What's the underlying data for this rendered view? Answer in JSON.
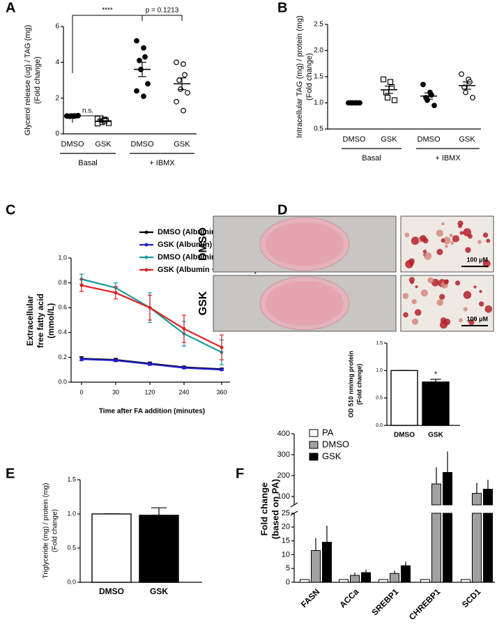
{
  "chart_data": [
    {
      "type": "dot",
      "panel": "A",
      "ylabel": [
        "Glycerol release (ug) / TAG (mg)",
        "(Fold change)"
      ],
      "categories": [
        "DMSO",
        "GSK",
        "DMSO",
        "GSK"
      ],
      "group_labels": [
        "Basal",
        "+ IBMX"
      ],
      "markers": [
        "filled-circle",
        "open-square",
        "filled-circle",
        "open-circle"
      ],
      "points": [
        [
          1.0,
          1.0,
          1.0,
          0.98,
          1.0,
          1.02,
          1.0,
          0.99
        ],
        [
          0.85,
          0.8,
          0.75,
          0.7,
          0.65,
          0.6,
          0.58,
          0.72
        ],
        [
          5.2,
          4.8,
          4.3,
          4.1,
          3.6,
          2.8,
          2.4,
          2.1
        ],
        [
          4.0,
          3.9,
          3.3,
          3.0,
          2.5,
          2.3,
          1.8,
          1.3
        ]
      ],
      "means": [
        1.0,
        0.7,
        3.6,
        2.8
      ],
      "errors": [
        0.01,
        0.04,
        0.4,
        0.33
      ],
      "annotations": [
        "****",
        "p = 0.1213",
        "n.s."
      ],
      "ylim": [
        0,
        6
      ],
      "yticks": [
        0,
        2,
        4,
        6
      ]
    },
    {
      "type": "dot",
      "panel": "B",
      "ylabel": [
        "Intracellular TAG (mg) / protein (mg)",
        "(Fold change)"
      ],
      "categories": [
        "DMSO",
        "GSK",
        "DMSO",
        "GSK"
      ],
      "group_labels": [
        "Basal",
        "+ IBMX"
      ],
      "markers": [
        "filled-circle",
        "open-square",
        "filled-circle",
        "open-circle"
      ],
      "points": [
        [
          1.0,
          1.0,
          1.0,
          1.0,
          1.0,
          1.0
        ],
        [
          1.45,
          1.4,
          1.3,
          1.2,
          1.1,
          1.05
        ],
        [
          1.35,
          1.2,
          1.15,
          1.1,
          1.05,
          0.95
        ],
        [
          1.55,
          1.45,
          1.4,
          1.3,
          1.2,
          1.1
        ]
      ],
      "means": [
        1.0,
        1.25,
        1.13,
        1.33
      ],
      "errors": [
        0.005,
        0.07,
        0.06,
        0.07
      ],
      "annotations": [],
      "ylim": [
        0.5,
        2.5
      ],
      "yticks": [
        0.5,
        {
          "value": 1,
          "label": "1.0"
        },
        1.5,
        {
          "value": 2,
          "label": "2.0"
        },
        2.5
      ]
    },
    {
      "type": "line",
      "panel": "C",
      "ylabel": [
        "Extracellular",
        "free fatty acid",
        "(mmol/L)"
      ],
      "xlabel": "Time after FA addition (minutes)",
      "categories": [
        "0",
        "30",
        "120",
        "240",
        "360"
      ],
      "series": [
        {
          "name": "DMSO (Albumin)",
          "color": "#000000",
          "values": [
            0.19,
            0.18,
            0.15,
            0.12,
            0.105
          ],
          "errors": [
            0.015,
            0.012,
            0.012,
            0.01,
            0.008
          ]
        },
        {
          "name": "GSK (Albumin)",
          "color": "#1f1fd0",
          "values": [
            0.185,
            0.175,
            0.145,
            0.115,
            0.1
          ],
          "errors": [
            0.012,
            0.01,
            0.01,
            0.008,
            0.006
          ]
        },
        {
          "name": "DMSO (Albumin + Oleic acid)",
          "color": "#1a9a9a",
          "values": [
            0.83,
            0.76,
            0.6,
            0.39,
            0.24
          ],
          "errors": [
            0.04,
            0.04,
            0.12,
            0.1,
            0.1
          ]
        },
        {
          "name": "GSK (Albumin + Oleic acid)",
          "color": "#e02020",
          "values": [
            0.78,
            0.72,
            0.6,
            0.43,
            0.28
          ],
          "errors": [
            0.05,
            0.05,
            0.1,
            0.11,
            0.1
          ]
        }
      ],
      "ylim": [
        0,
        1
      ],
      "yticks": [
        {
          "value": 0,
          "label": "0.0"
        },
        0.2,
        0.4,
        0.6,
        0.8,
        {
          "value": 1,
          "label": "1.0"
        }
      ]
    },
    {
      "type": "bar",
      "panel": "D",
      "image_row_labels": [
        "DMSO",
        "GSK"
      ],
      "scale_bar_labels": [
        "100 μM",
        "100 μM"
      ],
      "ylabel": [
        "OD 510 nm/mg protein",
        "(Fold change)"
      ],
      "categories": [
        "DMSO",
        "GSK"
      ],
      "values": [
        1.0,
        0.79
      ],
      "errors": [
        0,
        0.05
      ],
      "colors": [
        "#ffffff",
        "#000000"
      ],
      "annotations": [
        "*"
      ],
      "ylim": [
        0,
        1.5
      ],
      "yticks": [
        {
          "value": 0,
          "label": "0.0"
        },
        0.5,
        {
          "value": 1,
          "label": "1.0"
        },
        1.5
      ]
    },
    {
      "type": "bar",
      "panel": "E",
      "ylabel": [
        "Triglyceride (mg) / protein (mg)",
        "(Fold change)"
      ],
      "categories": [
        "DMSO",
        "GSK"
      ],
      "values": [
        1.0,
        0.98
      ],
      "errors": [
        0,
        0.11
      ],
      "colors": [
        "#ffffff",
        "#000000"
      ],
      "annotations": [],
      "ylim": [
        0,
        1.5
      ],
      "yticks": [
        {
          "value": 0,
          "label": "0.0"
        },
        0.5,
        {
          "value": 1,
          "label": "1.0"
        },
        1.5
      ]
    },
    {
      "type": "grouped_bar",
      "panel": "F",
      "ylabel": [
        "Fold change",
        "(based on PA)"
      ],
      "categories": [
        "FASN",
        "ACCa",
        "SREBP1",
        "CHREBP1",
        "SCD1"
      ],
      "series": [
        {
          "name": "PA",
          "color": "#ffffff",
          "values": [
            1,
            1,
            1,
            1,
            1
          ],
          "errors": [
            0,
            0,
            0,
            0,
            0
          ]
        },
        {
          "name": "DMSO",
          "color": "#a0a0a0",
          "values": [
            11.5,
            2.5,
            3.2,
            160,
            115
          ],
          "errors": [
            4.5,
            1,
            1,
            80,
            50
          ]
        },
        {
          "name": "GSK",
          "color": "#000000",
          "values": [
            14.5,
            3.5,
            6,
            215,
            135
          ],
          "errors": [
            6,
            1,
            1.5,
            100,
            45
          ]
        }
      ],
      "ylim_lower": [
        0,
        25
      ],
      "yticks_lower": [
        0,
        5,
        10,
        15,
        20,
        25
      ],
      "ylim_upper": [
        60,
        400
      ],
      "yticks_upper": [
        100,
        200,
        300,
        400
      ]
    }
  ]
}
